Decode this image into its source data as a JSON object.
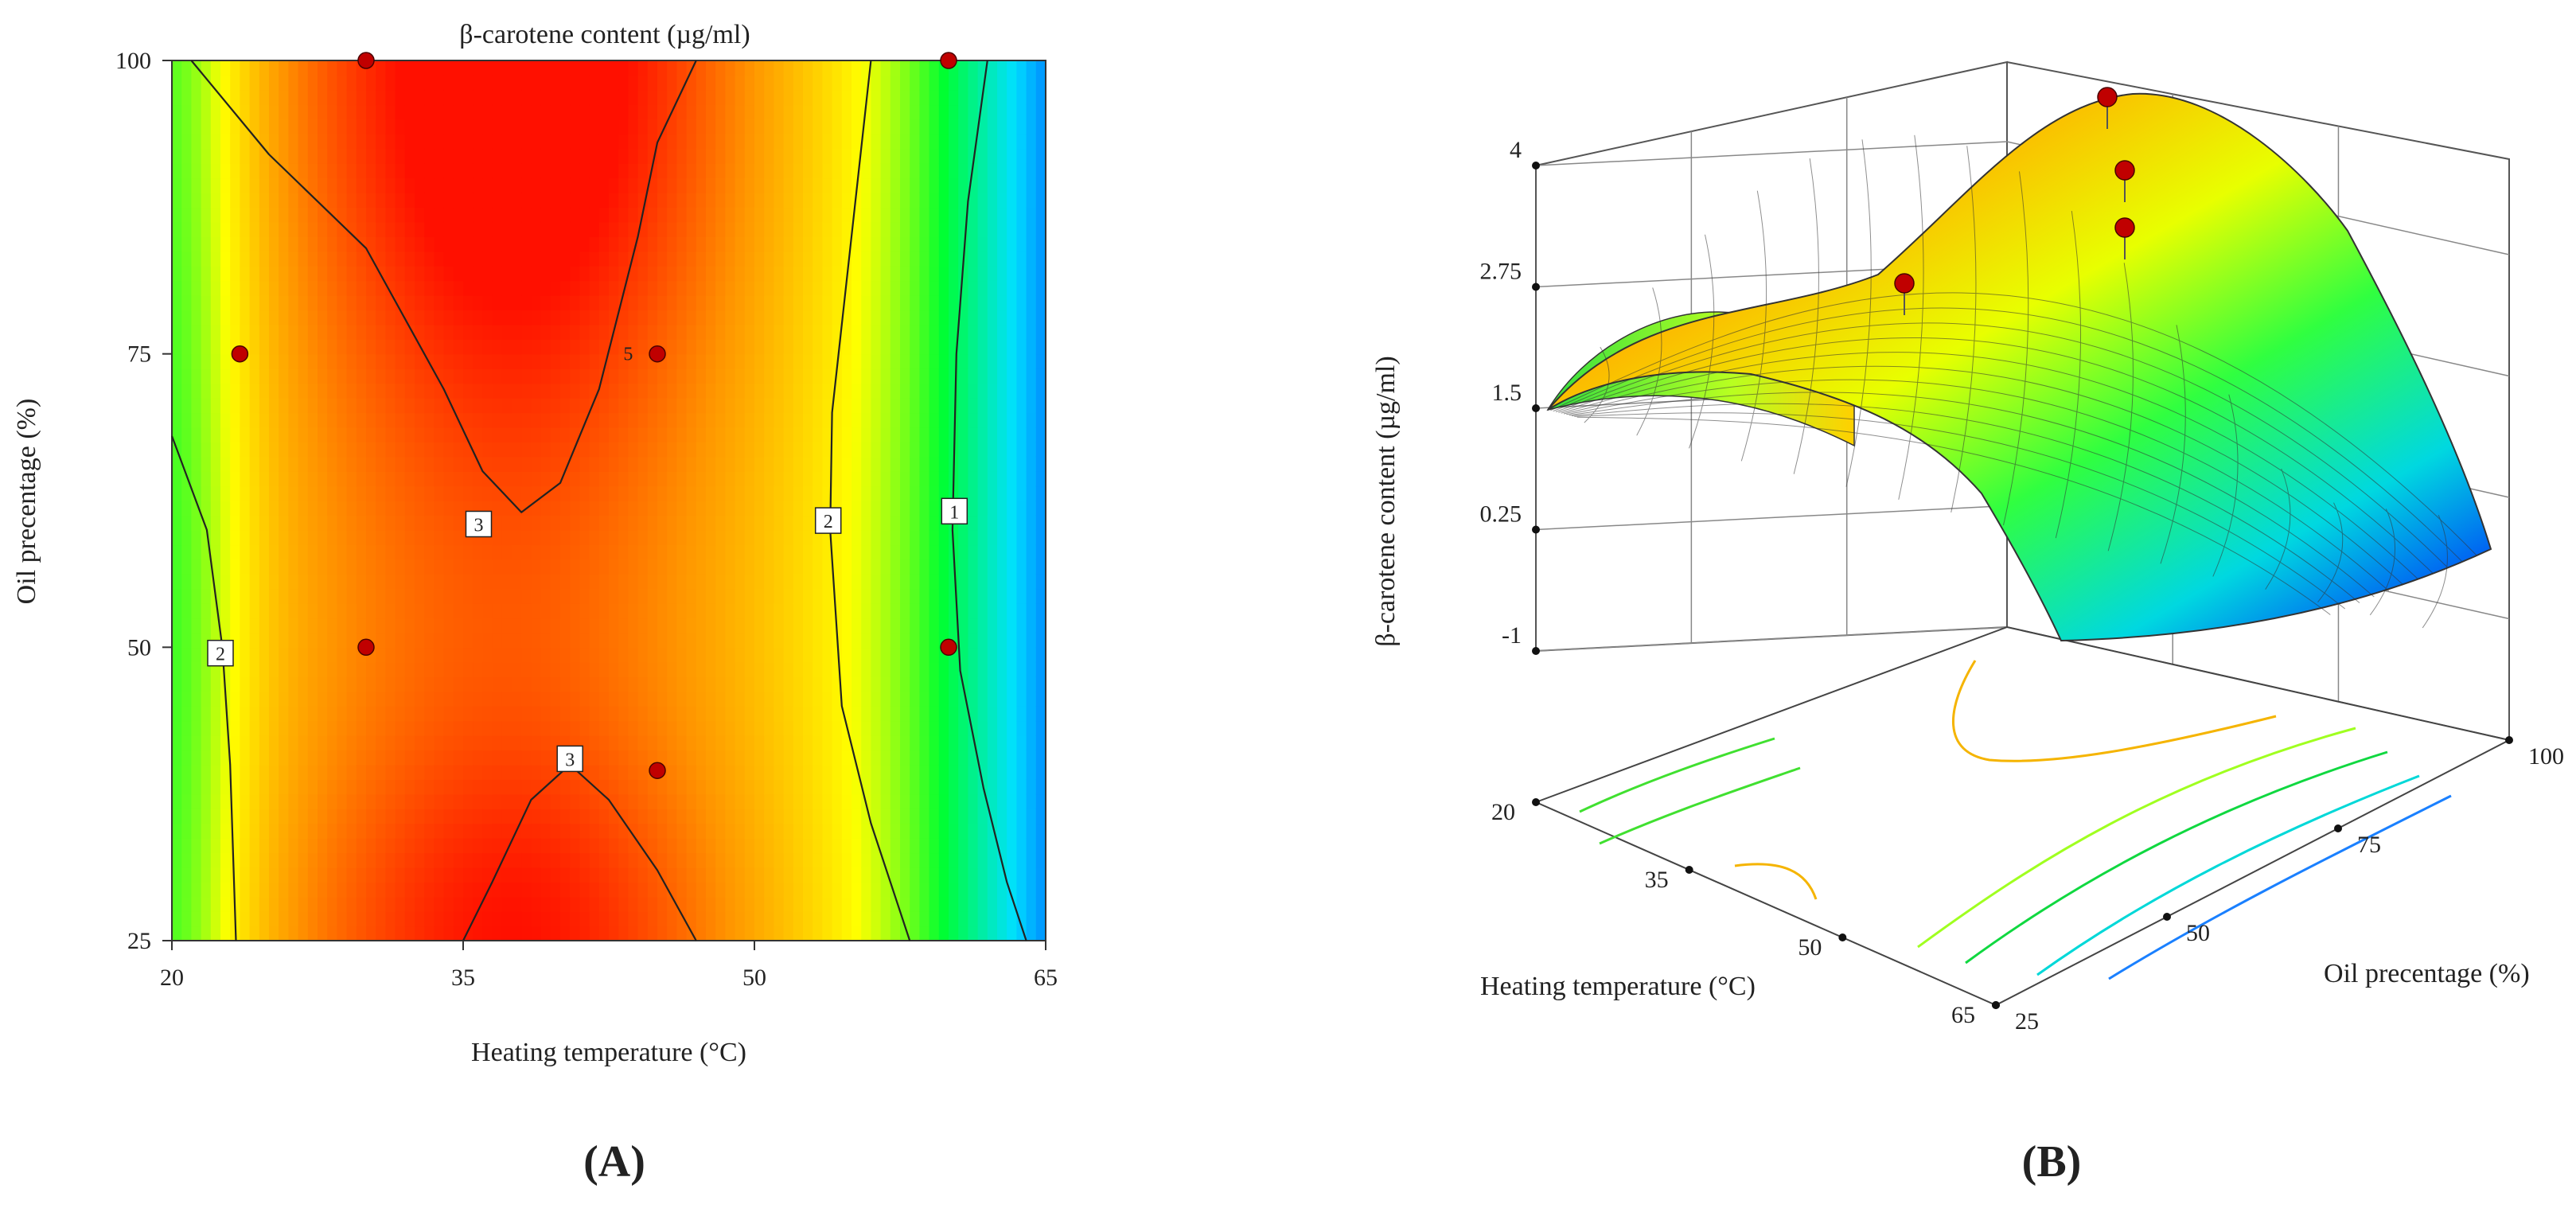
{
  "chart_data": [
    {
      "type": "heatmap",
      "subtype": "contour",
      "panel": "(A)",
      "title": "β-carotene content (µg/ml)",
      "xlabel": "Heating temperature (°C)",
      "ylabel": "Oil precentage (%)",
      "xlim": [
        20,
        65
      ],
      "ylim": [
        25,
        100
      ],
      "xticks": [
        "20",
        "35",
        "50",
        "65"
      ],
      "yticks": [
        "25",
        "50",
        "75",
        "100"
      ],
      "colormap": [
        "#0000ff",
        "#00e0ff",
        "#00ff30",
        "#ffff00",
        "#ff9500",
        "#ff1000"
      ],
      "contour_labels": [
        {
          "label": "3",
          "x": 35.8,
          "y": 60.5
        },
        {
          "label": "3",
          "x": 40.5,
          "y": 40.5
        },
        {
          "label": "2",
          "x": 22.5,
          "y": 49.5
        },
        {
          "label": "2",
          "x": 53.8,
          "y": 60.8
        },
        {
          "label": "1",
          "x": 60.3,
          "y": 61.6
        },
        {
          "label": "5",
          "x": 43.5,
          "y": 75
        }
      ],
      "design_points": [
        {
          "x": 30,
          "y": 100
        },
        {
          "x": 60,
          "y": 100
        },
        {
          "x": 23.5,
          "y": 75
        },
        {
          "x": 45,
          "y": 75
        },
        {
          "x": 30,
          "y": 50
        },
        {
          "x": 60,
          "y": 50
        },
        {
          "x": 45,
          "y": 39.5
        }
      ]
    },
    {
      "type": "surface3d",
      "panel": "(B)",
      "zlabel": "β-carotene content (µg/ml)",
      "xlabel": "Heating temperature (°C)",
      "ylabel": "Oil precentage (%)",
      "xticks": [
        "20",
        "35",
        "50",
        "65"
      ],
      "yticks": [
        "25",
        "50",
        "75",
        "100"
      ],
      "zticks": [
        "-1",
        "0.25",
        "1.5",
        "2.75",
        "4"
      ],
      "xlim": [
        20,
        65
      ],
      "ylim": [
        25,
        100
      ],
      "zlim": [
        -1,
        4
      ],
      "colormap": [
        "#0000ff",
        "#00e0ff",
        "#00ff30",
        "#ffff00",
        "#ff9500",
        "#ff1000"
      ],
      "design_points": [
        {
          "x": 35,
          "y": 100,
          "z": 4.2
        },
        {
          "x": 35,
          "y": 95,
          "z": 3.8
        },
        {
          "x": 40,
          "y": 85,
          "z": 3.5
        },
        {
          "x": 40,
          "y": 50,
          "z": 3.0
        }
      ]
    }
  ],
  "panel_labels": {
    "a": "(A)",
    "b": "(B)"
  }
}
